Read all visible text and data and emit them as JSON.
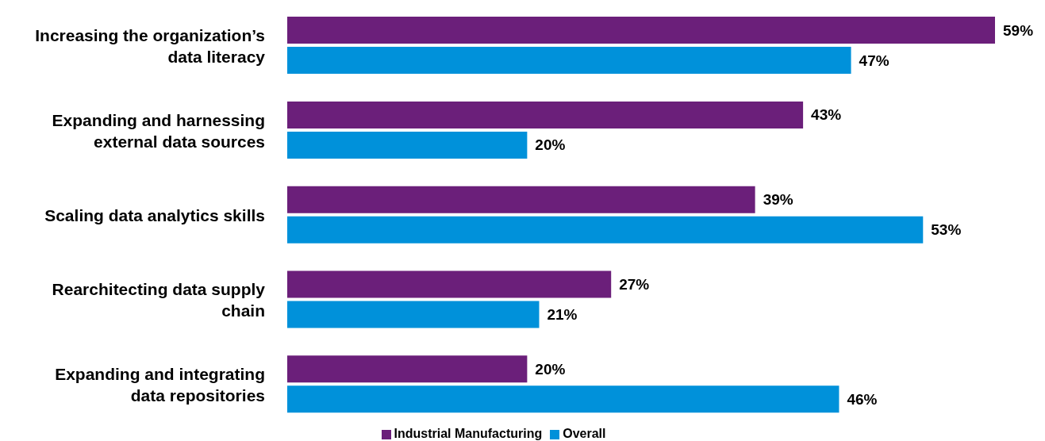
{
  "chart_data": {
    "type": "bar",
    "orientation": "horizontal",
    "categories": [
      "Increasing the organization’s data literacy",
      "Expanding and harnessing external data sources",
      "Scaling data analytics skills",
      "Rearchitecting data supply chain",
      "Expanding and integrating data repositories"
    ],
    "series": [
      {
        "name": "Industrial Manufacturing",
        "color": "#6b1f7a",
        "values": [
          59,
          43,
          39,
          27,
          20
        ],
        "value_labels": [
          "59%",
          "43%",
          "39%",
          "27%",
          "20%"
        ]
      },
      {
        "name": "Overall",
        "color": "#0091da",
        "values": [
          47,
          20,
          53,
          21,
          46
        ],
        "value_labels": [
          "47%",
          "20%",
          "53%",
          "21%",
          "46%"
        ]
      }
    ],
    "legend": "bottom"
  }
}
